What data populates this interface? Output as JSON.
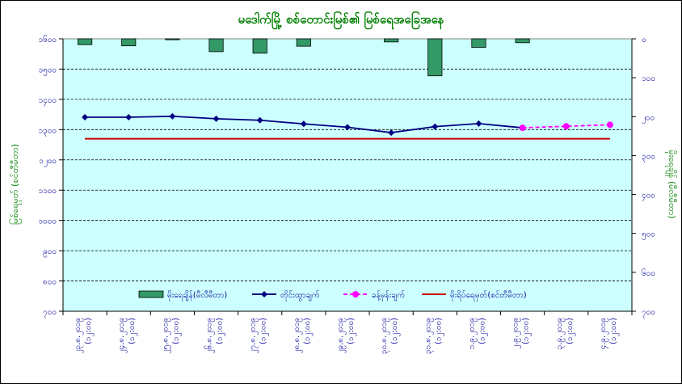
{
  "chart_data": {
    "type": "bar",
    "title": "မဒေါက်မြို့ စစ်တောင်းမြစ်၏ မြစ်ရေအခြေအနေ",
    "ylabel_left": "မြစ်ရေမှတ် (စင်တီမီတာ)",
    "ylabel_right": "မိုးရေချိန် (မီလီမီတာ)",
    "left_axis": {
      "min": 700,
      "max": 1600,
      "ticks": [
        700,
        800,
        900,
        1000,
        1100,
        1200,
        1300,
        1400,
        1500,
        1600
      ],
      "tick_labels": [
        "၇၀၀",
        "၈၀၀",
        "၉၀၀",
        "၁၀၀၀",
        "၁၁၀၀",
        "၁၂၀၀",
        "၁၃၀၀",
        "၁၄၀၀",
        "၁၅၀၀",
        "၁၆၀၀"
      ]
    },
    "right_axis": {
      "min": 0,
      "max": 700,
      "reversed": true,
      "ticks": [
        0,
        100,
        200,
        300,
        400,
        500,
        600,
        700
      ],
      "tick_labels": [
        "၀",
        "၁၀၀",
        "၂၀၀",
        "၃၀၀",
        "၄၀၀",
        "၅၀၀",
        "၆၀၀",
        "၇၀၀"
      ]
    },
    "grid": true,
    "categories": [
      [
        "၂၃.၈.၂၀၁၉",
        "(၁၂:၀၀)"
      ],
      [
        "၂၄.၈.၂၀၁၉",
        "(၁၂:၀၀)"
      ],
      [
        "၂၅.၈.၂၀၁၉",
        "(၁၂:၀၀)"
      ],
      [
        "၂၆.၈.၂၀၁၉",
        "(၁၂:၀၀)"
      ],
      [
        "၂၇.၈.၂၀၁၉",
        "(၁၂:၀၀)"
      ],
      [
        "၂၈.၈.၂၀၁၉",
        "(၁၂:၀၀)"
      ],
      [
        "၂၉.၈.၂၀၁၉",
        "(၁၂:၀၀)"
      ],
      [
        "၃၀.၈.၂၀၁၉",
        "(၁၂:၀၀)"
      ],
      [
        "၃၁.၈.၂၀၁၉",
        "(၁၂:၀၀)"
      ],
      [
        "၁.၉.၂၀၁၉",
        "(၁၂:၀၀)"
      ],
      [
        "၂.၉.၂၀၁၉",
        "(၁၂:၀၀)"
      ],
      [
        "၃.၉.၂၀၁၉",
        "(၁၂:၀၀)"
      ],
      [
        "၄.၉.၂၀၁၉",
        "(၁၂:၀၀)"
      ]
    ],
    "series": [
      {
        "name": "မိုးရေချိန်(မီလီမီတာ)",
        "kind": "bar",
        "axis": "right",
        "color": "#339966",
        "values": [
          15,
          18,
          2,
          33,
          37,
          19,
          null,
          8,
          95,
          22,
          10,
          null,
          null
        ]
      },
      {
        "name": "တိုင်းထွာချက်",
        "kind": "line",
        "axis": "left",
        "color": "#000080",
        "marker": "diamond",
        "values": [
          1341,
          1341,
          1344,
          1336,
          1331,
          1319,
          1308,
          1290,
          1310,
          1320,
          1306,
          null,
          null
        ]
      },
      {
        "name": "ခန့်မှန်းချက်",
        "kind": "line",
        "axis": "left",
        "color": "#ff00ff",
        "marker": "circle",
        "dashed": true,
        "values": [
          null,
          null,
          null,
          null,
          null,
          null,
          null,
          null,
          null,
          null,
          1306,
          1311,
          1316
        ]
      },
      {
        "name": "မိုးရိပ်ရေမှတ်(စင်တီမီတာ)",
        "kind": "line",
        "axis": "left",
        "color": "#cc0000",
        "marker": "none",
        "values": [
          1270,
          1270,
          1270,
          1270,
          1270,
          1270,
          1270,
          1270,
          1270,
          1270,
          1270,
          1270,
          1270
        ]
      }
    ],
    "legend": "bottom",
    "colors": {
      "plot_background": "#ccffff",
      "axis_text": "#000099",
      "title": "#008000",
      "grid": "#000000"
    }
  }
}
